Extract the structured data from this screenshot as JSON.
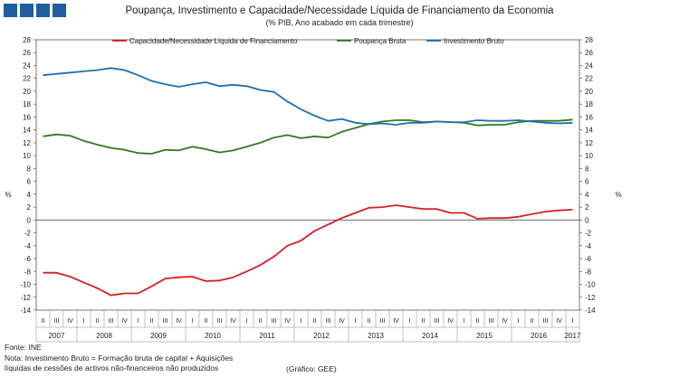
{
  "header": {
    "title": "Poupança,  Investimento  e Capacidade/Necessidade  Líquida de Financiamento  da Economia",
    "subtitle": "(% PIB, Ano acabado em cada trimestre)"
  },
  "chart_data": {
    "type": "line",
    "title": "Poupança,  Investimento  e Capacidade/Necessidade  Líquida de Financiamento  da Economia",
    "subtitle": "(% PIB, Ano acabado em cada trimestre)",
    "ylabel_left": "%",
    "ylabel_right": "%",
    "ylim": [
      -14,
      28
    ],
    "yticks": [
      -14,
      -12,
      -10,
      -8,
      -6,
      -4,
      -2,
      0,
      2,
      4,
      6,
      8,
      10,
      12,
      14,
      16,
      18,
      20,
      22,
      24,
      26,
      28
    ],
    "quarters": [
      "II",
      "III",
      "IV",
      "I",
      "II",
      "III",
      "IV",
      "I",
      "II",
      "III",
      "IV",
      "I",
      "II",
      "III",
      "IV",
      "I",
      "II",
      "III",
      "IV",
      "I",
      "II",
      "III",
      "IV",
      "I",
      "II",
      "III",
      "IV",
      "I",
      "II",
      "III",
      "IV",
      "I",
      "II",
      "III",
      "IV",
      "I",
      "II",
      "III",
      "IV",
      "I"
    ],
    "years": [
      "2007",
      "2008",
      "2009",
      "2010",
      "2011",
      "2012",
      "2013",
      "2014",
      "2015",
      "2016",
      "2017"
    ],
    "legend_position": "top",
    "series": [
      {
        "name": "Capacidade/Necessidade Líquida de Financiamento",
        "color": "#d42027",
        "values": [
          -8.2,
          -8.2,
          -8.8,
          -9.7,
          -10.6,
          -11.7,
          -11.4,
          -11.4,
          -10.3,
          -9.1,
          -8.9,
          -8.8,
          -9.5,
          -9.4,
          -8.9,
          -8.0,
          -7.0,
          -5.7,
          -4.0,
          -3.2,
          -1.7,
          -0.7,
          0.3,
          1.1,
          1.9,
          2.0,
          2.3,
          2.0,
          1.7,
          1.7,
          1.1,
          1.1,
          0.2,
          0.3,
          0.3,
          0.5,
          0.9,
          1.3,
          1.5,
          1.6
        ]
      },
      {
        "name": "Poupança Bruta",
        "color": "#2e7d1e",
        "values": [
          13.0,
          13.3,
          13.1,
          12.3,
          11.7,
          11.2,
          10.9,
          10.4,
          10.3,
          10.9,
          10.8,
          11.4,
          11.0,
          10.5,
          10.8,
          11.4,
          12.0,
          12.8,
          13.2,
          12.7,
          13.0,
          12.8,
          13.7,
          14.3,
          14.9,
          15.3,
          15.5,
          15.5,
          15.2,
          15.3,
          15.2,
          15.1,
          14.7,
          14.8,
          14.8,
          15.2,
          15.4,
          15.4,
          15.4,
          15.6
        ]
      },
      {
        "name": "Investimento Bruto",
        "color": "#1f6fb0",
        "values": [
          22.5,
          22.7,
          22.9,
          23.1,
          23.3,
          23.6,
          23.3,
          22.5,
          21.6,
          21.1,
          20.7,
          21.1,
          21.4,
          20.8,
          21.0,
          20.8,
          20.2,
          19.9,
          18.4,
          17.2,
          16.2,
          15.4,
          15.7,
          15.1,
          14.9,
          15.0,
          14.8,
          15.1,
          15.1,
          15.3,
          15.2,
          15.2,
          15.5,
          15.4,
          15.4,
          15.5,
          15.3,
          15.1,
          15.0,
          15.1
        ]
      }
    ]
  },
  "footer": {
    "source": "Fonte: INE",
    "note_line1": "Nota: Investimento Bruto = Formação bruta de capital + Aquisições",
    "note_line2": "líquidas de cessões de activos não-financeiros não produzidos",
    "credit": "(Gráfico: GEE)"
  }
}
